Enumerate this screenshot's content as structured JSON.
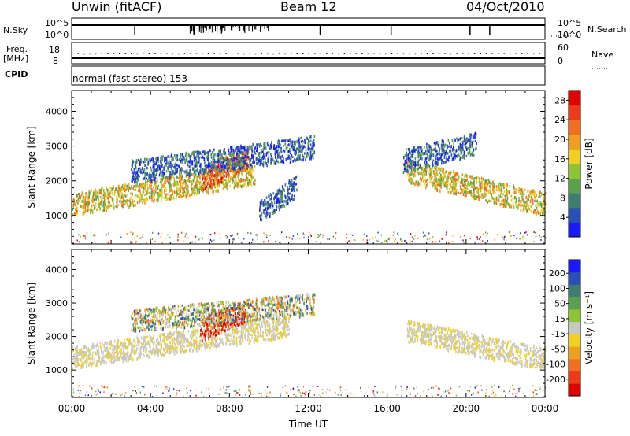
{
  "header": {
    "station": "Unwin (fitACF)",
    "beam": "Beam 12",
    "date": "04/Oct/2010"
  },
  "status_panels": {
    "nsky_label": "N.Sky",
    "nsky_ticks": [
      "10^5",
      "10^0"
    ],
    "nsearch_label": "N.Search",
    "nsearch_ticks": [
      "10^5",
      "10^0"
    ],
    "freq_label_1": "Freq.",
    "freq_label_2": "[MHz]",
    "freq_ticks": [
      "18",
      "8"
    ],
    "nave_label": "Nave",
    "nave_ticks": [
      "60",
      "0"
    ],
    "cpid_label": "CPID",
    "cpid_text": "normal (fast stereo) 153"
  },
  "chart_data": [
    {
      "type": "heatmap",
      "name": "power",
      "xlabel": "Time UT",
      "ylabel": "Slant Range [km]",
      "xlim": [
        0,
        24
      ],
      "ylim": [
        180,
        4600
      ],
      "yticks": [
        "1000",
        "2000",
        "3000",
        "4000"
      ],
      "colorbar": {
        "label": "Power [dB]",
        "ticks": [
          "4",
          "8",
          "12",
          "16",
          "20",
          "24",
          "28"
        ],
        "range": [
          0,
          30
        ],
        "colors": [
          "#1a1aff",
          "#2a50b8",
          "#3f7d72",
          "#5aa04f",
          "#8dc432",
          "#f0d020",
          "#f0a020",
          "#f07020",
          "#ef3a1a",
          "#e00000"
        ]
      },
      "features": [
        {
          "t0": 0.0,
          "t1": 9.3,
          "range_start_km": 1350,
          "range_end_km": 2250,
          "level": "medium"
        },
        {
          "t0": 6.6,
          "t1": 9.0,
          "range_start_km": 2100,
          "range_end_km": 2700,
          "level": "high"
        },
        {
          "t0": 3.0,
          "t1": 12.3,
          "range_start_km": 2300,
          "range_end_km": 3000,
          "level": "low"
        },
        {
          "t0": 9.5,
          "t1": 11.4,
          "range_start_km": 1100,
          "range_end_km": 1900,
          "level": "low"
        },
        {
          "t0": 17.0,
          "t1": 24.0,
          "range_start_km": 2300,
          "range_end_km": 1350,
          "level": "medium"
        },
        {
          "t0": 16.8,
          "t1": 20.5,
          "range_start_km": 2600,
          "range_end_km": 3100,
          "level": "low"
        }
      ]
    },
    {
      "type": "heatmap",
      "name": "velocity",
      "xlabel": "Time UT",
      "ylabel": "Slant Range [km]",
      "xlim": [
        0,
        24
      ],
      "ylim": [
        180,
        4600
      ],
      "yticks": [
        "1000",
        "2000",
        "3000",
        "4000"
      ],
      "xticks": [
        "00:00",
        "04:00",
        "08:00",
        "12:00",
        "16:00",
        "20:00",
        "00:00"
      ],
      "colorbar": {
        "label": "Velocity [m s⁻¹]",
        "ticks": [
          "200",
          "100",
          "50",
          "15",
          "-15",
          "-50",
          "-100",
          "-200"
        ],
        "range": [
          -250,
          250
        ],
        "colors": [
          "#e00000",
          "#ef3a1a",
          "#f07020",
          "#f0a020",
          "#f0d020",
          "#c8c8c0",
          "#8dc432",
          "#5aa04f",
          "#3f7d72",
          "#2a50b8",
          "#1a1aff"
        ]
      },
      "features": [
        {
          "t0": 0.0,
          "t1": 11.0,
          "range_start_km": 1400,
          "range_end_km": 2350,
          "level": "ground"
        },
        {
          "t0": 6.5,
          "t1": 8.8,
          "range_start_km": 2200,
          "range_end_km": 2800,
          "level": "negative"
        },
        {
          "t0": 3.0,
          "t1": 12.3,
          "range_start_km": 2500,
          "range_end_km": 3000,
          "level": "mixed"
        },
        {
          "t0": 17.0,
          "t1": 24.0,
          "range_start_km": 2200,
          "range_end_km": 1350,
          "level": "ground"
        }
      ]
    }
  ]
}
